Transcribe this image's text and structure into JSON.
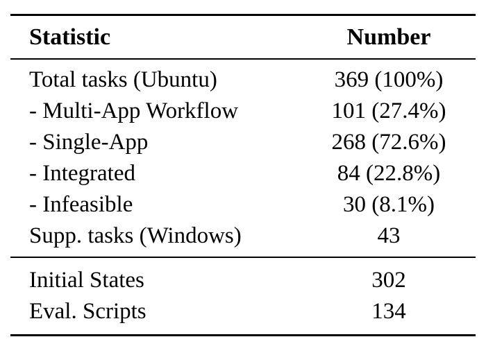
{
  "colors": {
    "text": "#000000",
    "background": "#ffffff",
    "rule": "#000000"
  },
  "table": {
    "columns": {
      "statistic": "Statistic",
      "number": "Number"
    },
    "sections": [
      {
        "rows": [
          {
            "label": "Total tasks (Ubuntu)",
            "value": "369 (100%)"
          },
          {
            "label": "- Multi-App Workflow",
            "value": "101 (27.4%)"
          },
          {
            "label": "- Single-App",
            "value": "268 (72.6%)"
          },
          {
            "label": "- Integrated",
            "value": "84 (22.8%)"
          },
          {
            "label": "- Infeasible",
            "value": "30 (8.1%)"
          },
          {
            "label": "Supp. tasks (Windows)",
            "value": "43"
          }
        ]
      },
      {
        "rows": [
          {
            "label": "Initial States",
            "value": "302"
          },
          {
            "label": "Eval. Scripts",
            "value": "134"
          }
        ]
      }
    ]
  }
}
